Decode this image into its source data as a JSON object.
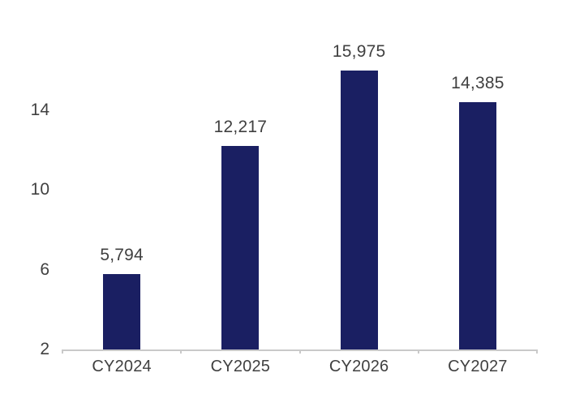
{
  "chart_data": {
    "type": "bar",
    "title": "",
    "categories": [
      "CY2024",
      "CY2025",
      "CY2026",
      "CY2027"
    ],
    "values": [
      5794,
      12217,
      15975,
      14385
    ],
    "value_labels": [
      "5,794",
      "12,217",
      "15,975",
      "14,385"
    ],
    "series_count": 1,
    "xlabel": "",
    "ylabel": "",
    "y_axis": {
      "ticks": [
        2,
        6,
        10,
        14
      ],
      "tick_labels": [
        "2",
        "6",
        "10",
        "14"
      ],
      "min": 2,
      "max": 16,
      "units": "thousands"
    },
    "gridlines": false,
    "legend": false,
    "colors": {
      "bar": "#1A1F62",
      "text": "#404040",
      "axis": "#C9C9C9"
    }
  }
}
